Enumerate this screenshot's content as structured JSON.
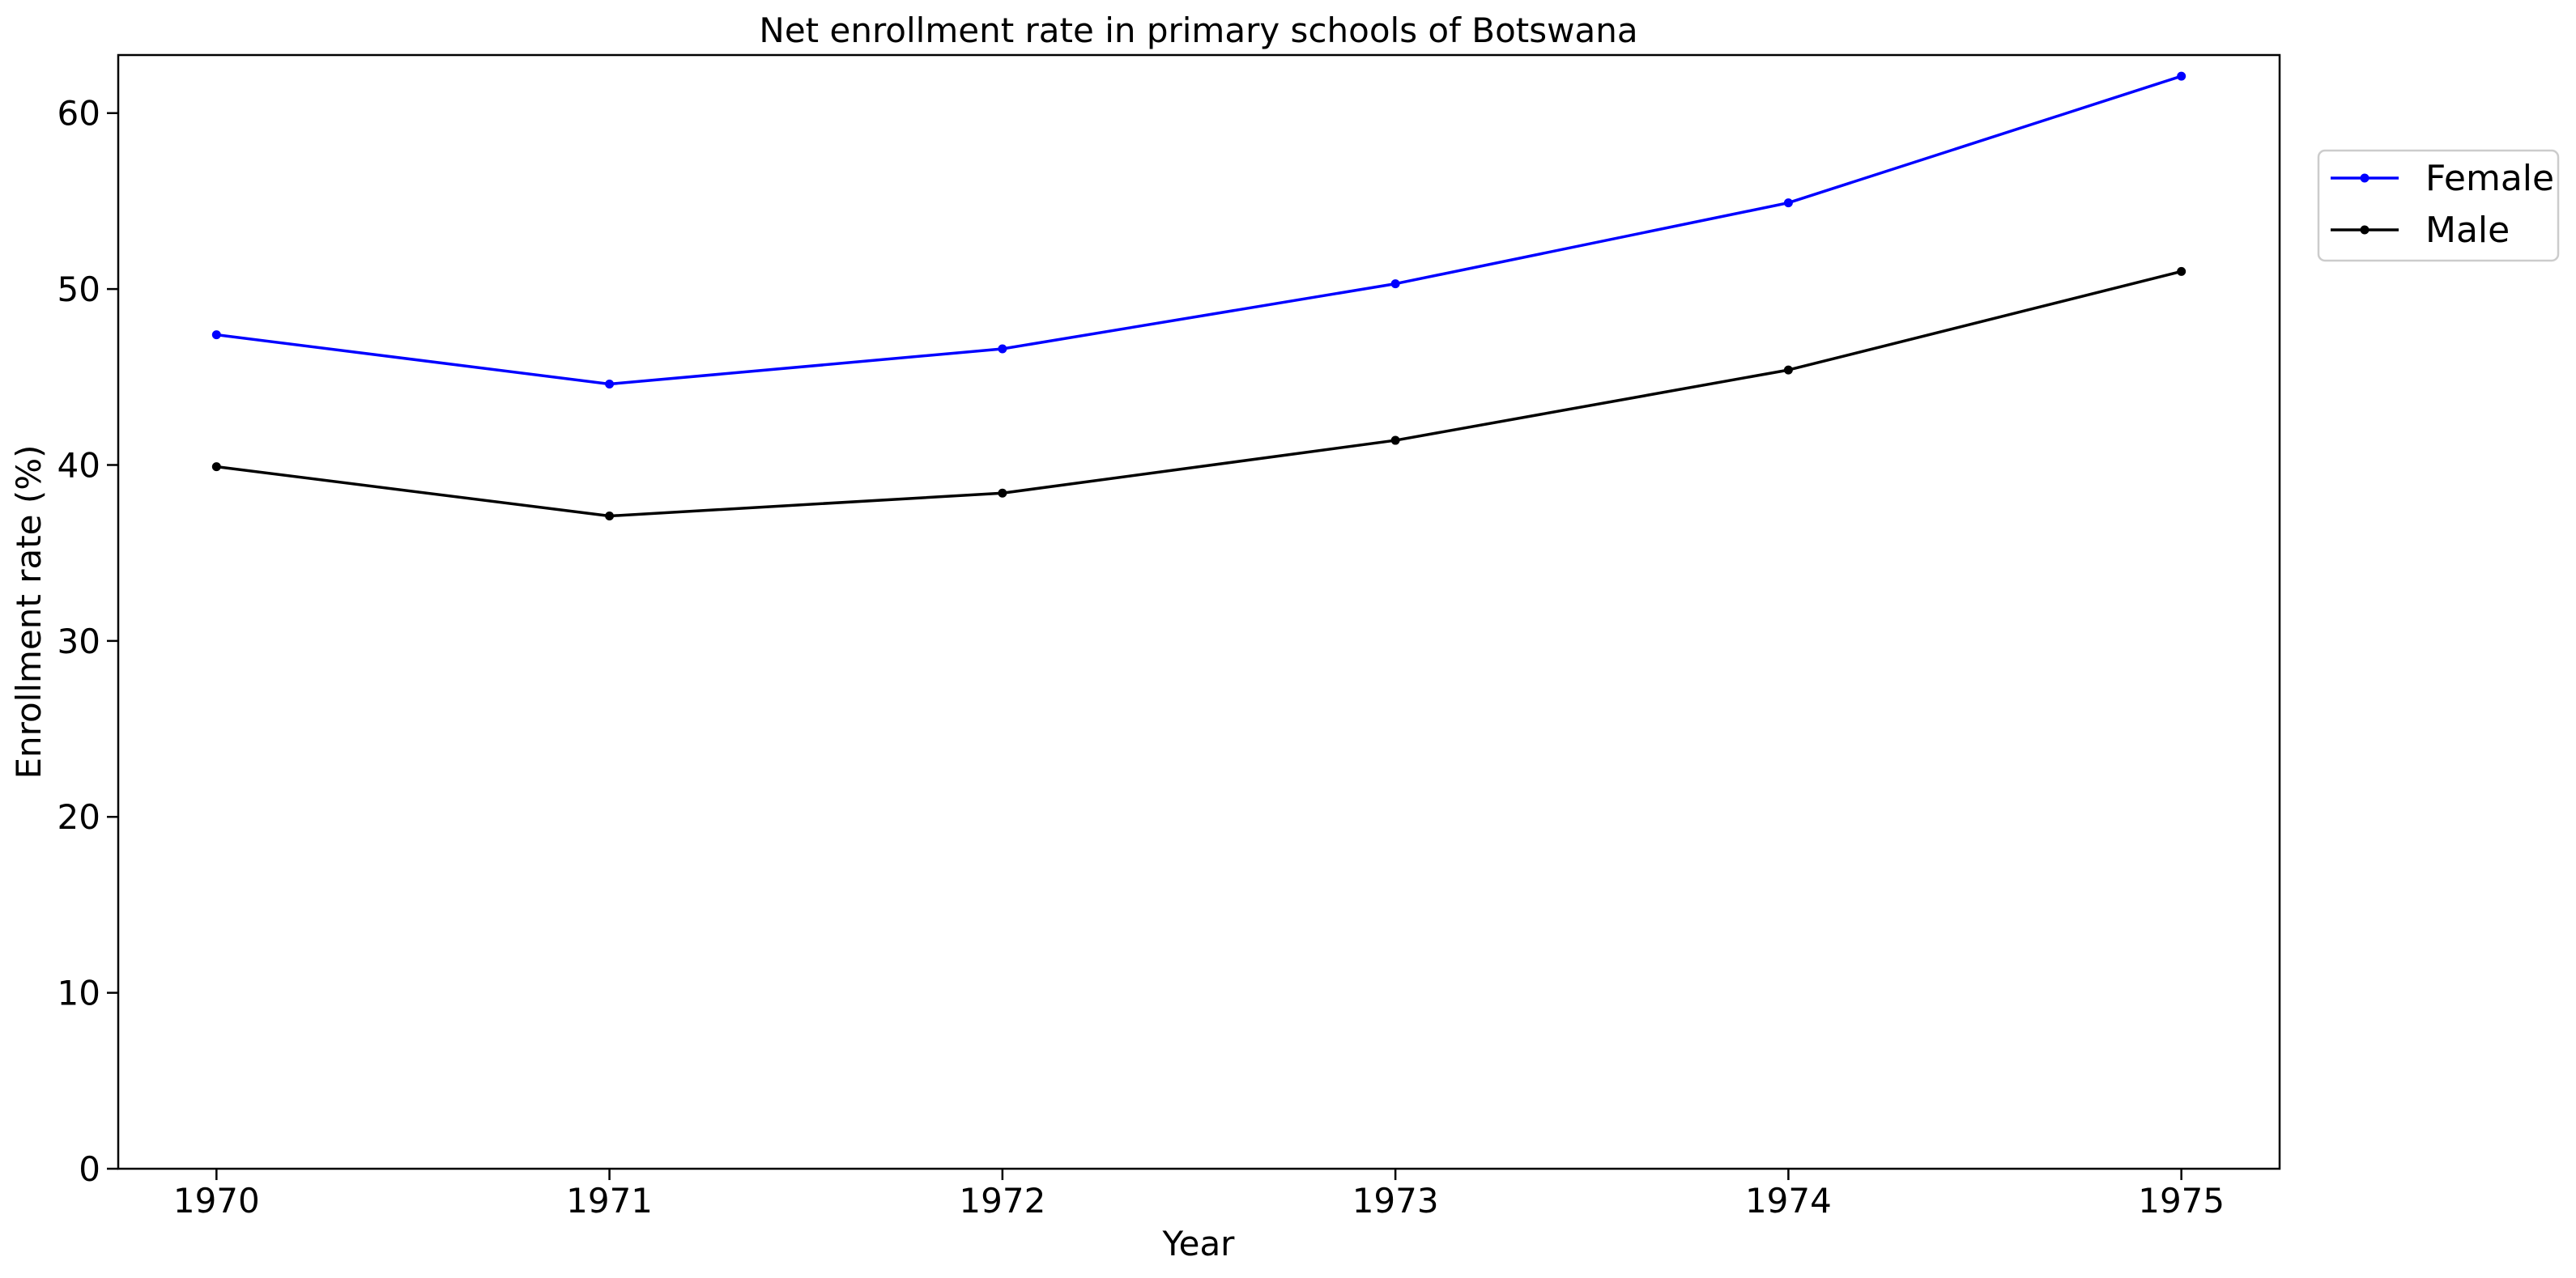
{
  "chart_data": {
    "type": "line",
    "title": "Net enrollment rate in primary schools of Botswana",
    "xlabel": "Year",
    "ylabel": "Enrollment rate (%)",
    "x": [
      1970,
      1971,
      1972,
      1973,
      1974,
      1975
    ],
    "x_tick_labels": [
      "1970",
      "1971",
      "1972",
      "1973",
      "1974",
      "1975"
    ],
    "y_ticks": [
      0,
      10,
      20,
      30,
      40,
      50,
      60
    ],
    "y_tick_labels": [
      "0",
      "10",
      "20",
      "30",
      "40",
      "50",
      "60"
    ],
    "xlim": [
      1969.75,
      1975.25
    ],
    "ylim": [
      0,
      63.3
    ],
    "grid": false,
    "legend_position": "upper right, outside plot area",
    "series": [
      {
        "name": "Female",
        "color": "#0000ff",
        "marker": "dot",
        "values": [
          47.4,
          44.6,
          46.6,
          50.3,
          54.9,
          62.1
        ]
      },
      {
        "name": "Male",
        "color": "#000000",
        "marker": "dot",
        "values": [
          39.9,
          37.1,
          38.4,
          41.4,
          45.4,
          51.0
        ]
      }
    ]
  }
}
